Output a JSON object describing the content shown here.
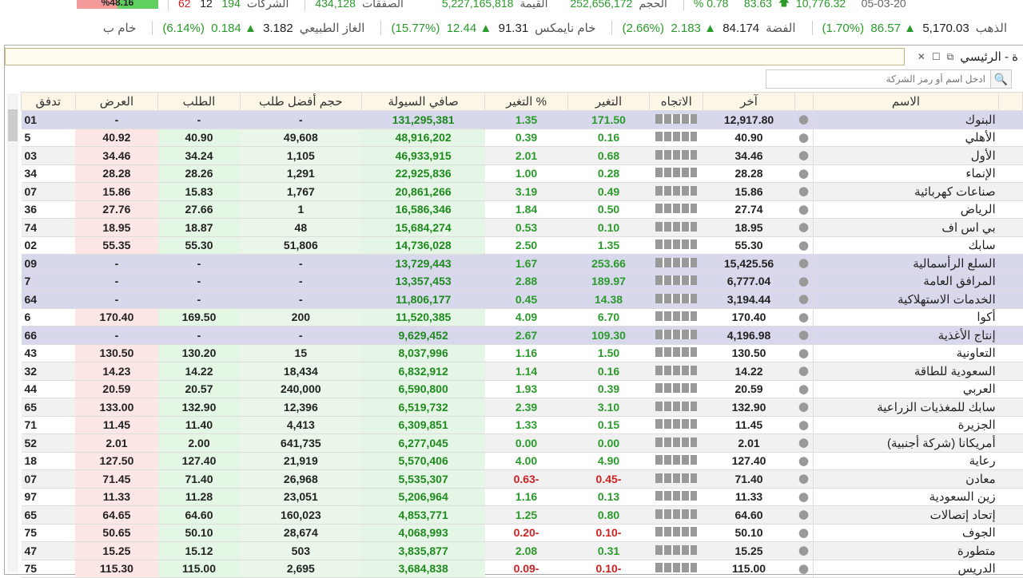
{
  "ticker_top": {
    "pct_bar": "%48.16",
    "down": "62",
    "flat": "12",
    "up": "194",
    "companies_label": "الشركات",
    "deals": "434,128",
    "deals_label": "الصفقات",
    "value": "5,227,165,818",
    "value_label": "القيمة",
    "volume": "252,656,172",
    "volume_label": "الحجم",
    "change_pct": "% 0.78",
    "change": "83.63",
    "index": "10,776.32",
    "date": "05-03-20"
  },
  "commodities": [
    {
      "name": "الذهب",
      "price": "5,170.03",
      "change": "86.57",
      "pct": "(1.70%)"
    },
    {
      "name": "الفضة",
      "price": "84.174",
      "change": "2.183",
      "pct": "(2.66%)"
    },
    {
      "name": "خام نايمكس",
      "price": "91.31",
      "change": "12.44",
      "pct": "(15.77%)"
    },
    {
      "name": "الغاز الطبيعي",
      "price": "3.182",
      "change": "0.184",
      "pct": "(6.14%)"
    },
    {
      "name": "خام ب",
      "price": "",
      "change": "",
      "pct": ""
    }
  ],
  "window": {
    "title": "ة - الرئيسي",
    "search_placeholder": "ادخل اسم أو رمز الشركة"
  },
  "columns": [
    "تدفق",
    "العرض",
    "الطلب",
    "حجم أفضل طلب",
    "صافي السيولة",
    "التغير %",
    "التغير",
    "الاتجاه",
    "آخر",
    "",
    "الاسم"
  ],
  "colors": {
    "positive": "#2a9a2a",
    "negative": "#cc2222",
    "index_row": "#d8d8ec",
    "ask": "#fde6e6",
    "bid": "#e4f7e4"
  },
  "rows": [
    {
      "flow": "01",
      "ask": "-",
      "bid": "-",
      "vol": "-",
      "net": "131,295,381",
      "pct": "1.35",
      "chg": "171.50",
      "last": "12,917.80",
      "name": "البنوك",
      "index": true
    },
    {
      "flow": "5",
      "ask": "40.92",
      "bid": "40.90",
      "vol": "49,608",
      "net": "48,916,202",
      "pct": "0.39",
      "chg": "0.16",
      "last": "40.90",
      "name": "الأهلي"
    },
    {
      "flow": "03",
      "ask": "34.46",
      "bid": "34.24",
      "vol": "1,105",
      "net": "46,933,915",
      "pct": "2.01",
      "chg": "0.68",
      "last": "34.46",
      "name": "الأول"
    },
    {
      "flow": "34",
      "ask": "28.28",
      "bid": "28.26",
      "vol": "1,291",
      "net": "22,925,836",
      "pct": "1.00",
      "chg": "0.28",
      "last": "28.28",
      "name": "الإنماء"
    },
    {
      "flow": "07",
      "ask": "15.86",
      "bid": "15.83",
      "vol": "1,767",
      "net": "20,861,266",
      "pct": "3.19",
      "chg": "0.49",
      "last": "15.86",
      "name": "صناعات كهربائية"
    },
    {
      "flow": "36",
      "ask": "27.76",
      "bid": "27.66",
      "vol": "1",
      "net": "16,586,346",
      "pct": "1.84",
      "chg": "0.50",
      "last": "27.74",
      "name": "الرياض"
    },
    {
      "flow": "74",
      "ask": "18.95",
      "bid": "18.87",
      "vol": "48",
      "net": "15,684,274",
      "pct": "0.53",
      "chg": "0.10",
      "last": "18.95",
      "name": "بي اس اف"
    },
    {
      "flow": "02",
      "ask": "55.35",
      "bid": "55.30",
      "vol": "51,806",
      "net": "14,736,028",
      "pct": "2.50",
      "chg": "1.35",
      "last": "55.30",
      "name": "سابك"
    },
    {
      "flow": "09",
      "ask": "-",
      "bid": "-",
      "vol": "-",
      "net": "13,729,443",
      "pct": "1.67",
      "chg": "253.66",
      "last": "15,425.56",
      "name": "السلع الرأسمالية",
      "index": true
    },
    {
      "flow": "7",
      "ask": "-",
      "bid": "-",
      "vol": "-",
      "net": "13,357,453",
      "pct": "2.88",
      "chg": "189.97",
      "last": "6,777.04",
      "name": "المرافق العامة",
      "index": true
    },
    {
      "flow": "64",
      "ask": "-",
      "bid": "-",
      "vol": "-",
      "net": "11,806,177",
      "pct": "0.45",
      "chg": "14.38",
      "last": "3,194.44",
      "name": "الخدمات الاستهلاكية",
      "index": true
    },
    {
      "flow": "6",
      "ask": "170.40",
      "bid": "169.50",
      "vol": "200",
      "net": "11,520,385",
      "pct": "4.09",
      "chg": "6.70",
      "last": "170.40",
      "name": "أكوا"
    },
    {
      "flow": "66",
      "ask": "-",
      "bid": "-",
      "vol": "-",
      "net": "9,629,452",
      "pct": "2.67",
      "chg": "109.30",
      "last": "4,196.98",
      "name": "إنتاج الأغذية",
      "index": true
    },
    {
      "flow": "43",
      "ask": "130.50",
      "bid": "130.20",
      "vol": "15",
      "net": "8,037,996",
      "pct": "1.16",
      "chg": "1.50",
      "last": "130.50",
      "name": "التعاونية"
    },
    {
      "flow": "32",
      "ask": "14.23",
      "bid": "14.22",
      "vol": "18,434",
      "net": "6,832,912",
      "pct": "1.14",
      "chg": "0.16",
      "last": "14.22",
      "name": "السعودية للطاقة"
    },
    {
      "flow": "44",
      "ask": "20.59",
      "bid": "20.57",
      "vol": "240,000",
      "net": "6,590,800",
      "pct": "1.93",
      "chg": "0.39",
      "last": "20.59",
      "name": "العربي"
    },
    {
      "flow": "65",
      "ask": "133.00",
      "bid": "132.90",
      "vol": "12,396",
      "net": "6,519,732",
      "pct": "2.39",
      "chg": "3.10",
      "last": "132.90",
      "name": "سابك للمغذيات الزراعية"
    },
    {
      "flow": "71",
      "ask": "11.45",
      "bid": "11.40",
      "vol": "4,413",
      "net": "6,309,851",
      "pct": "1.33",
      "chg": "0.15",
      "last": "11.45",
      "name": "الجزيرة"
    },
    {
      "flow": "52",
      "ask": "2.01",
      "bid": "2.00",
      "vol": "641,735",
      "net": "6,277,045",
      "pct": "0.00",
      "chg": "0.00",
      "last": "2.01",
      "name": "أمريكانا (شركة أجنبية)"
    },
    {
      "flow": "18",
      "ask": "127.50",
      "bid": "127.40",
      "vol": "21,919",
      "net": "5,570,406",
      "pct": "4.00",
      "chg": "4.90",
      "last": "127.40",
      "name": "رعاية"
    },
    {
      "flow": "07",
      "ask": "71.45",
      "bid": "71.40",
      "vol": "26,968",
      "net": "5,535,307",
      "pct": "0.63-",
      "chg": "0.45-",
      "last": "71.40",
      "name": "معادن",
      "neg": true
    },
    {
      "flow": "97",
      "ask": "11.33",
      "bid": "11.28",
      "vol": "23,051",
      "net": "5,206,964",
      "pct": "1.16",
      "chg": "0.13",
      "last": "11.33",
      "name": "زين السعودية"
    },
    {
      "flow": "65",
      "ask": "64.65",
      "bid": "64.60",
      "vol": "160,023",
      "net": "4,853,771",
      "pct": "1.25",
      "chg": "0.80",
      "last": "64.60",
      "name": "إتحاد إتصالات"
    },
    {
      "flow": "75",
      "ask": "50.65",
      "bid": "50.10",
      "vol": "28,674",
      "net": "4,068,993",
      "pct": "0.20-",
      "chg": "0.10-",
      "last": "50.10",
      "name": "الجوف",
      "neg": true
    },
    {
      "flow": "47",
      "ask": "15.25",
      "bid": "15.12",
      "vol": "503",
      "net": "3,835,877",
      "pct": "2.08",
      "chg": "0.31",
      "last": "15.25",
      "name": "متطورة"
    },
    {
      "flow": "75",
      "ask": "115.30",
      "bid": "115.00",
      "vol": "2,695",
      "net": "3,684,838",
      "pct": "0.09-",
      "chg": "0.10-",
      "last": "115.00",
      "name": "الدريس",
      "neg": true
    }
  ]
}
